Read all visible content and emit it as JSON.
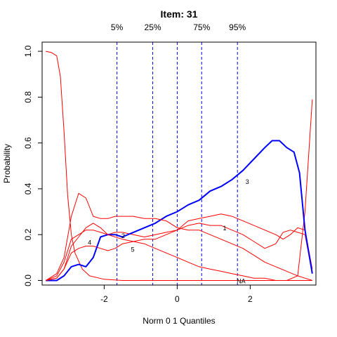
{
  "chart_data": {
    "type": "line",
    "title": "Item:  31",
    "xlabel": "Norm 0 1 Quantiles",
    "ylabel": "Probability",
    "xlim": [
      -3.7,
      3.8
    ],
    "ylim": [
      -0.02,
      1.04
    ],
    "x_ticks": [
      -2,
      0,
      2
    ],
    "x_tick_labels": [
      "-2",
      "0",
      "2"
    ],
    "y_ticks": [
      0.0,
      0.2,
      0.4,
      0.6,
      0.8,
      1.0
    ],
    "y_tick_labels": [
      "0.0",
      "0.2",
      "0.4",
      "0.6",
      "0.8",
      "1.0"
    ],
    "quantiles": [
      {
        "label": "5%",
        "x": -1.65
      },
      {
        "label": "25%",
        "x": -0.67
      },
      {
        "label": "",
        "x": 0.0
      },
      {
        "label": "75%",
        "x": 0.67
      },
      {
        "label": "95%",
        "x": 1.65
      }
    ],
    "quantile_line_color": "#0000ff",
    "series": [
      {
        "name": "NA",
        "color": "#ff0000",
        "width": 1,
        "x": [
          -3.6,
          -3.45,
          -3.3,
          -3.2,
          -3.1,
          -3.0,
          -2.9,
          -2.8,
          -2.6,
          -2.4,
          -2.0,
          -1.5,
          -1.0,
          -0.5,
          0.0,
          0.5,
          1.0,
          1.5,
          2.0,
          2.5,
          3.0,
          3.3,
          3.5,
          3.7
        ],
        "y": [
          1.0,
          0.995,
          0.98,
          0.89,
          0.65,
          0.37,
          0.2,
          0.12,
          0.05,
          0.02,
          0.005,
          0.0,
          0.0,
          0.0,
          0.0,
          0.0,
          0.0,
          0.0,
          0.0,
          0.0,
          0.0,
          0.02,
          0.3,
          0.79
        ],
        "label": "NA",
        "label_at": [
          1.75,
          -0.003
        ]
      },
      {
        "name": "1",
        "color": "#ff0000",
        "width": 1,
        "x": [
          -3.6,
          -3.3,
          -3.1,
          -2.9,
          -2.7,
          -2.5,
          -2.3,
          -2.1,
          -1.9,
          -1.7,
          -1.5,
          -1.2,
          -0.9,
          -0.6,
          -0.3,
          0.0,
          0.3,
          0.6,
          0.9,
          1.2,
          1.5,
          1.8,
          2.1,
          2.4,
          2.7,
          2.9,
          3.1,
          3.3,
          3.5,
          3.7
        ],
        "y": [
          0.0,
          0.01,
          0.05,
          0.12,
          0.14,
          0.15,
          0.15,
          0.14,
          0.13,
          0.14,
          0.16,
          0.17,
          0.18,
          0.18,
          0.2,
          0.22,
          0.24,
          0.25,
          0.24,
          0.24,
          0.22,
          0.2,
          0.17,
          0.14,
          0.16,
          0.21,
          0.22,
          0.21,
          0.2,
          0.03
        ],
        "label": "1",
        "label_at": [
          1.3,
          0.228
        ]
      },
      {
        "name": "2",
        "color": "#ff0000",
        "width": 1,
        "x": [
          -3.6,
          -3.3,
          -3.1,
          -2.9,
          -2.7,
          -2.5,
          -2.3,
          -2.1,
          -1.9,
          -1.7,
          -1.5,
          -1.2,
          -0.9,
          -0.6,
          -0.3,
          0.0,
          0.3,
          0.6,
          0.9,
          1.2,
          1.5,
          1.8,
          2.1,
          2.4,
          2.7,
          2.9,
          3.1,
          3.3,
          3.5,
          3.7
        ],
        "y": [
          0.0,
          0.02,
          0.08,
          0.18,
          0.2,
          0.22,
          0.22,
          0.21,
          0.2,
          0.21,
          0.21,
          0.2,
          0.19,
          0.2,
          0.21,
          0.22,
          0.26,
          0.27,
          0.28,
          0.29,
          0.28,
          0.26,
          0.24,
          0.22,
          0.2,
          0.18,
          0.2,
          0.23,
          0.22,
          0.05
        ],
        "label": "2",
        "label_at": [
          -1.48,
          0.195
        ]
      },
      {
        "name": "3",
        "color": "#0000ff",
        "width": 2,
        "x": [
          -3.6,
          -3.3,
          -3.1,
          -2.9,
          -2.7,
          -2.5,
          -2.3,
          -2.1,
          -1.9,
          -1.7,
          -1.5,
          -1.2,
          -0.9,
          -0.6,
          -0.3,
          0.0,
          0.3,
          0.6,
          0.9,
          1.2,
          1.5,
          1.8,
          2.1,
          2.4,
          2.6,
          2.8,
          3.0,
          3.2,
          3.35,
          3.5,
          3.7
        ],
        "y": [
          0.0,
          0.0,
          0.02,
          0.06,
          0.07,
          0.06,
          0.1,
          0.19,
          0.2,
          0.2,
          0.19,
          0.21,
          0.23,
          0.25,
          0.28,
          0.3,
          0.33,
          0.35,
          0.39,
          0.41,
          0.44,
          0.48,
          0.53,
          0.58,
          0.61,
          0.61,
          0.58,
          0.56,
          0.47,
          0.22,
          0.03
        ],
        "label": "3",
        "label_at": [
          1.92,
          0.43
        ]
      },
      {
        "name": "4",
        "color": "#ff0000",
        "width": 1,
        "x": [
          -3.6,
          -3.3,
          -3.1,
          -2.9,
          -2.7,
          -2.5,
          -2.3,
          -2.1,
          -1.9,
          -1.7,
          -1.5,
          -1.2,
          -0.9,
          -0.6,
          -0.3,
          0.0,
          0.3,
          0.6,
          0.9,
          1.2,
          1.5,
          1.8,
          2.1,
          2.4,
          2.7,
          3.0,
          3.3,
          3.5,
          3.7
        ],
        "y": [
          0.0,
          0.03,
          0.1,
          0.28,
          0.38,
          0.36,
          0.28,
          0.27,
          0.27,
          0.28,
          0.28,
          0.28,
          0.27,
          0.27,
          0.26,
          0.23,
          0.22,
          0.22,
          0.2,
          0.18,
          0.16,
          0.14,
          0.11,
          0.08,
          0.06,
          0.04,
          0.02,
          0.01,
          0.0
        ],
        "label": "4",
        "label_at": [
          -2.4,
          0.165
        ]
      },
      {
        "name": "5",
        "color": "#ff0000",
        "width": 1,
        "x": [
          -3.6,
          -3.3,
          -3.1,
          -2.9,
          -2.7,
          -2.5,
          -2.3,
          -2.1,
          -1.9,
          -1.7,
          -1.5,
          -1.2,
          -0.9,
          -0.6,
          -0.3,
          0.0,
          0.3,
          0.6,
          0.9,
          1.2,
          1.5,
          1.8,
          2.1,
          2.4,
          2.7,
          3.0,
          3.3,
          3.7
        ],
        "y": [
          0.0,
          0.01,
          0.05,
          0.15,
          0.19,
          0.23,
          0.25,
          0.23,
          0.2,
          0.19,
          0.18,
          0.17,
          0.16,
          0.14,
          0.12,
          0.1,
          0.08,
          0.06,
          0.05,
          0.04,
          0.03,
          0.02,
          0.01,
          0.01,
          0.0,
          0.0,
          0.0,
          0.0
        ],
        "label": "5",
        "label_at": [
          -1.22,
          0.135
        ]
      }
    ]
  }
}
